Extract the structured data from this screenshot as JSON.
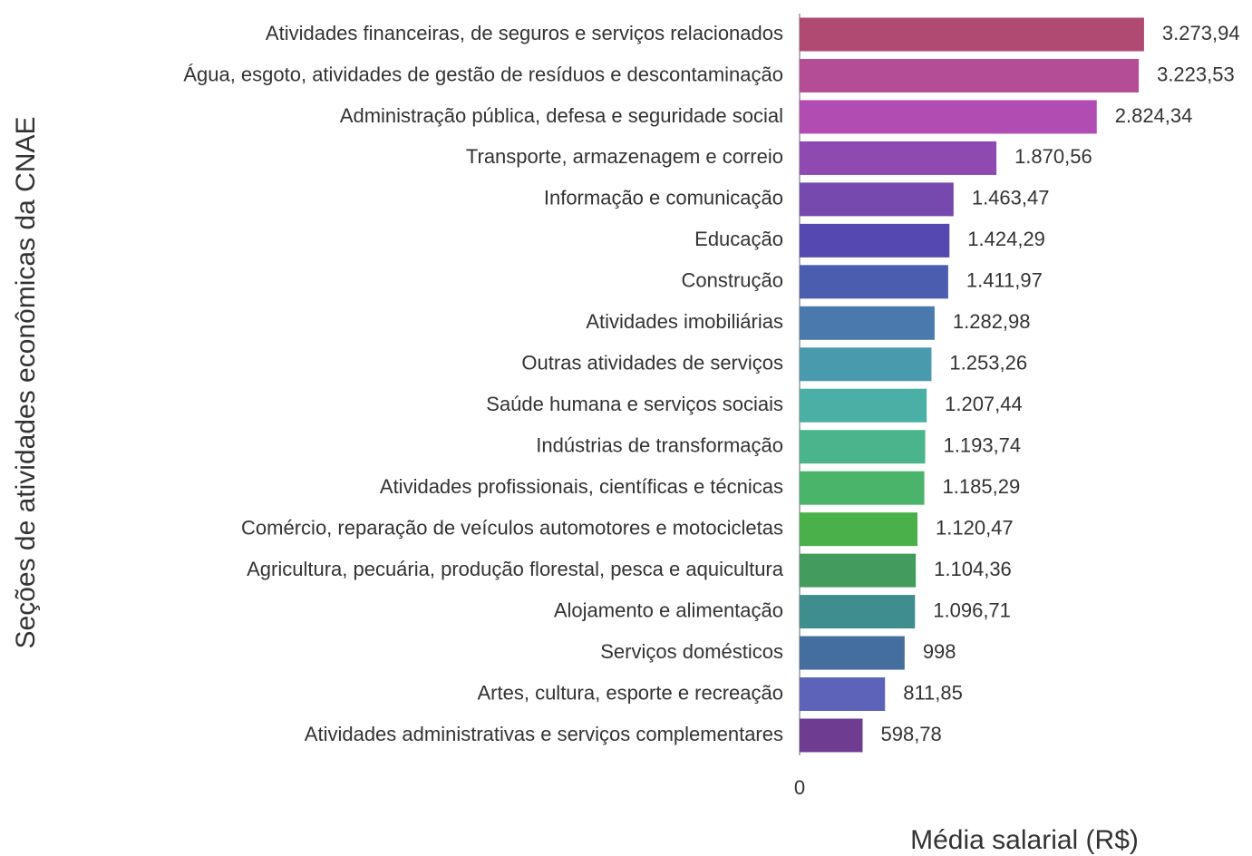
{
  "chart_data": {
    "type": "bar",
    "orientation": "horizontal",
    "xlabel": "Média salarial (R$)",
    "ylabel": "Seções de atividades econômicas da CNAE",
    "categories": [
      "Atividades financeiras, de seguros e serviços relacionados",
      "Água, esgoto, atividades de gestão de resíduos e descontaminação",
      "Administração pública, defesa e seguridade social",
      "Transporte, armazenagem e correio",
      "Informação e comunicação",
      "Educação",
      "Construção",
      "Atividades imobiliárias",
      "Outras atividades de serviços",
      "Saúde humana e serviços sociais",
      "Indústrias de transformação",
      "Atividades profissionais, científicas e técnicas",
      "Comércio, reparação de veículos automotores e motocicletas",
      "Agricultura, pecuária, produção florestal, pesca e aquicultura",
      "Alojamento e alimentação",
      "Serviços domésticos",
      "Artes, cultura, esporte e recreação",
      "Atividades administrativas e serviços complementares"
    ],
    "values": [
      3273.94,
      3223.53,
      2824.34,
      1870.56,
      1463.47,
      1424.29,
      1411.97,
      1282.98,
      1253.26,
      1207.44,
      1193.74,
      1185.29,
      1120.47,
      1104.36,
      1096.71,
      998,
      811.85,
      598.78
    ],
    "value_labels": [
      "3.273,94",
      "3.223,53",
      "2.824,34",
      "1.870,56",
      "1.463,47",
      "1.424,29",
      "1.411,97",
      "1.282,98",
      "1.253,26",
      "1.207,44",
      "1.193,74",
      "1.185,29",
      "1.120,47",
      "1.104,36",
      "1.096,71",
      "998",
      "811,85",
      "598,78"
    ],
    "colors": [
      "#b04a72",
      "#b44d96",
      "#b04cb2",
      "#8e4ab0",
      "#7549ad",
      "#5548b0",
      "#4a5daf",
      "#4a7aad",
      "#4a9aad",
      "#4aafa5",
      "#4ab58c",
      "#4ab46a",
      "#4ab14a",
      "#439c5e",
      "#3e8e8e",
      "#446e9e",
      "#5c63b8",
      "#6e3d92"
    ],
    "xlim": [
      0,
      4300
    ],
    "xticks": [
      0
    ]
  }
}
